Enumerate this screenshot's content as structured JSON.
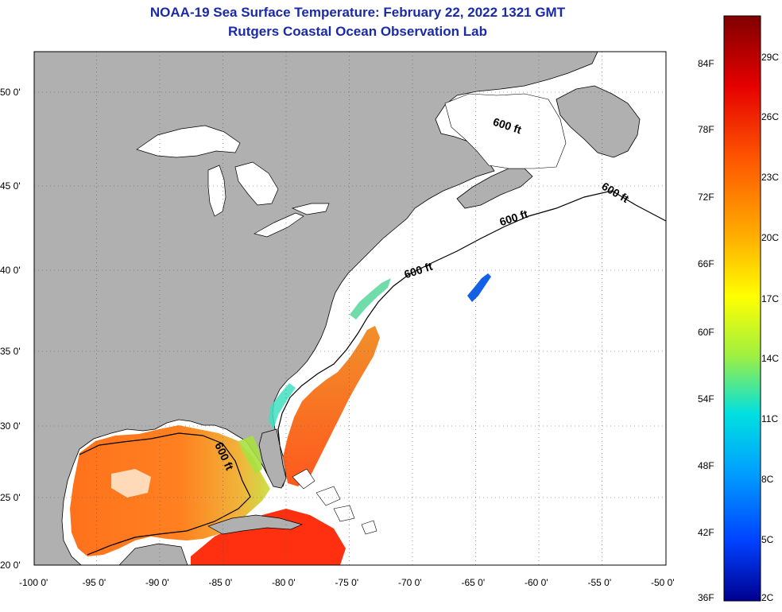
{
  "header": {
    "title": "NOAA-19 Sea Surface Temperature:  February 22, 2022 1321 GMT",
    "subtitle": "Rutgers Coastal Ocean Observation Lab"
  },
  "map": {
    "lon_labels": [
      "-100 0'",
      "-95 0'",
      "-90 0'",
      "-85 0'",
      "-80 0'",
      "-75 0'",
      "-70 0'",
      "-65 0'",
      "-60 0'",
      "-55 0'",
      "-50 0'"
    ],
    "lat_labels": [
      "50 0'",
      "45 0'",
      "40 0'",
      "35 0'",
      "30 0'",
      "25 0'",
      "20 0'"
    ],
    "contour_labels": [
      "600 ft",
      "600 ft",
      "600 ft",
      "600 ft",
      "600 ft"
    ],
    "colors": {
      "land": "#b0b0b0",
      "ocean_no_data": "#ffffff",
      "coast": "#000000"
    }
  },
  "colorbar": {
    "f_labels": [
      "84F",
      "78F",
      "72F",
      "66F",
      "60F",
      "54F",
      "48F",
      "42F",
      "36F"
    ],
    "c_labels": [
      "29C",
      "26C",
      "23C",
      "20C",
      "17C",
      "14C",
      "11C",
      "8C",
      "5C",
      "2C"
    ],
    "stops": [
      "#800000",
      "#e60000",
      "#ff5a00",
      "#ffb000",
      "#ffff00",
      "#a0f040",
      "#00e0e0",
      "#00a0ff",
      "#0040ff",
      "#000090"
    ]
  }
}
